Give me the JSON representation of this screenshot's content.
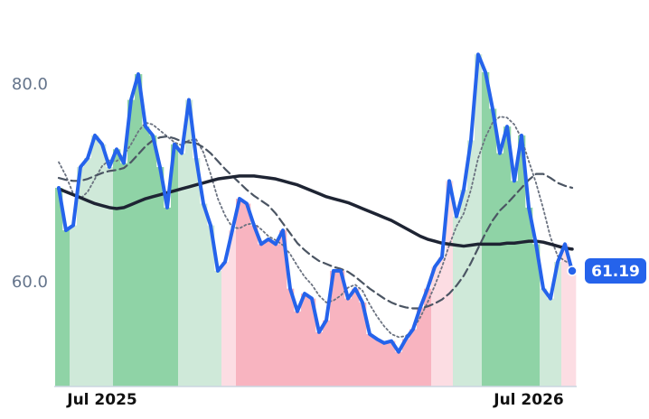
{
  "chart_data": {
    "type": "line",
    "categories": [
      null,
      null,
      null,
      null,
      null,
      null,
      "Jul 2025",
      null,
      null,
      null,
      null,
      null,
      null,
      null,
      null,
      null,
      null,
      null,
      null,
      null,
      null,
      null,
      null,
      null,
      null,
      null,
      null,
      null,
      null,
      null,
      null,
      null,
      null,
      null,
      null,
      null,
      null,
      null,
      null,
      null,
      null,
      null,
      null,
      null,
      null,
      null,
      null,
      null,
      null,
      null,
      null,
      null,
      null,
      null,
      null,
      null,
      null,
      null,
      null,
      null,
      null,
      null,
      null,
      null,
      null,
      "Jul 2026",
      null,
      null,
      null,
      null,
      null,
      null
    ],
    "series": [
      {
        "color": "#2563eb",
        "style": "solid",
        "width": 4,
        "area": true,
        "values": [
          69.6,
          65.3,
          65.8,
          71.7,
          72.6,
          74.9,
          74.0,
          71.7,
          73.5,
          72.1,
          78.5,
          81.1,
          75.8,
          74.9,
          71.7,
          67.6,
          74.0,
          73.1,
          78.5,
          72.6,
          68.0,
          65.8,
          61.2,
          62.1,
          65.3,
          68.5,
          68.0,
          65.8,
          63.9,
          64.4,
          63.9,
          65.3,
          59.4,
          57.1,
          58.9,
          58.4,
          55.0,
          56.2,
          61.2,
          61.2,
          58.4,
          59.4,
          58.0,
          54.8,
          54.3,
          53.9,
          54.1,
          53.0,
          54.3,
          55.3,
          57.5,
          59.4,
          61.6,
          62.6,
          70.3,
          66.7,
          69.4,
          74.4,
          83.1,
          81.3,
          77.6,
          73.1,
          75.8,
          70.3,
          74.9,
          67.6,
          63.9,
          59.4,
          58.4,
          62.1,
          63.9,
          61.19
        ]
      },
      {
        "color": "#1e2433",
        "style": "solid",
        "width": 3.5,
        "values": [
          69.5,
          69.2,
          68.9,
          68.6,
          68.3,
          68.0,
          67.8,
          67.6,
          67.5,
          67.6,
          67.9,
          68.2,
          68.5,
          68.7,
          68.9,
          69.1,
          69.3,
          69.5,
          69.7,
          69.9,
          70.1,
          70.3,
          70.5,
          70.6,
          70.7,
          70.8,
          70.8,
          70.8,
          70.7,
          70.6,
          70.5,
          70.3,
          70.1,
          69.9,
          69.6,
          69.3,
          69.0,
          68.7,
          68.5,
          68.3,
          68.1,
          67.8,
          67.5,
          67.2,
          66.9,
          66.6,
          66.3,
          65.9,
          65.5,
          65.1,
          64.7,
          64.4,
          64.2,
          64.0,
          63.9,
          63.8,
          63.7,
          63.8,
          63.9,
          63.9,
          63.9,
          63.9,
          64.0,
          64.0,
          64.1,
          64.2,
          64.2,
          64.1,
          63.9,
          63.7,
          63.5,
          63.4
        ]
      },
      {
        "color": "#4b5563",
        "style": "dashed",
        "width": 2.2,
        "values": [
          70.6,
          70.4,
          70.3,
          70.3,
          70.5,
          70.8,
          71.1,
          71.3,
          71.4,
          71.6,
          72.2,
          73.0,
          73.8,
          74.4,
          74.7,
          74.8,
          74.6,
          74.3,
          74.2,
          74.1,
          73.7,
          73.1,
          72.3,
          71.5,
          70.8,
          70.1,
          69.4,
          68.8,
          68.3,
          67.8,
          67.0,
          66.0,
          65.0,
          64.0,
          63.3,
          62.7,
          62.2,
          61.9,
          61.6,
          61.4,
          61.1,
          60.6,
          60.0,
          59.4,
          58.9,
          58.4,
          58.0,
          57.7,
          57.5,
          57.4,
          57.4,
          57.6,
          57.9,
          58.3,
          58.9,
          59.7,
          60.7,
          62.0,
          63.5,
          65.0,
          66.3,
          67.3,
          68.0,
          68.8,
          69.6,
          70.4,
          71.0,
          71.0,
          70.6,
          70.1,
          69.8,
          69.6
        ]
      },
      {
        "color": "#6b7280",
        "style": "dotted",
        "width": 1.8,
        "values": [
          72.2,
          70.8,
          69.0,
          68.5,
          69.2,
          70.5,
          71.8,
          72.4,
          72.3,
          72.9,
          74.0,
          75.3,
          76.2,
          76.0,
          75.4,
          74.8,
          74.2,
          73.9,
          74.4,
          74.5,
          73.2,
          71.0,
          68.5,
          66.8,
          65.6,
          65.5,
          65.9,
          66.0,
          65.4,
          64.7,
          64.3,
          63.8,
          62.9,
          61.7,
          60.6,
          59.8,
          58.7,
          58.0,
          58.2,
          58.7,
          59.5,
          59.8,
          59.2,
          57.8,
          56.6,
          55.6,
          54.8,
          54.5,
          54.6,
          55.3,
          56.5,
          58.0,
          59.7,
          61.6,
          63.8,
          65.7,
          67.0,
          69.4,
          72.6,
          74.7,
          76.2,
          76.8,
          76.7,
          76.0,
          74.6,
          72.3,
          70.1,
          67.5,
          64.6,
          62.7,
          62.2,
          61.8
        ]
      }
    ],
    "area_colors": [
      "#8fd3a6",
      "#8fd3a6",
      "#cfe9d9",
      "#cfe9d9",
      "#cfe9d9",
      "#cfe9d9",
      "#cfe9d9",
      "#cfe9d9",
      "#8fd3a6",
      "#8fd3a6",
      "#8fd3a6",
      "#8fd3a6",
      "#8fd3a6",
      "#8fd3a6",
      "#8fd3a6",
      "#8fd3a6",
      "#8fd3a6",
      "#cfe9d9",
      "#cfe9d9",
      "#cfe9d9",
      "#cfe9d9",
      "#cfe9d9",
      "#cfe9d9",
      "#fcdde3",
      "#fcdde3",
      "#f8b4c0",
      "#f8b4c0",
      "#f8b4c0",
      "#f8b4c0",
      "#f8b4c0",
      "#f8b4c0",
      "#f8b4c0",
      "#f8b4c0",
      "#f8b4c0",
      "#f8b4c0",
      "#f8b4c0",
      "#f8b4c0",
      "#f8b4c0",
      "#f8b4c0",
      "#f8b4c0",
      "#f8b4c0",
      "#f8b4c0",
      "#f8b4c0",
      "#f8b4c0",
      "#f8b4c0",
      "#f8b4c0",
      "#f8b4c0",
      "#f8b4c0",
      "#f8b4c0",
      "#f8b4c0",
      "#f8b4c0",
      "#f8b4c0",
      "#fcdde3",
      "#fcdde3",
      "#fcdde3",
      "#cfe9d9",
      "#cfe9d9",
      "#cfe9d9",
      "#cfe9d9",
      "#8fd3a6",
      "#8fd3a6",
      "#8fd3a6",
      "#8fd3a6",
      "#8fd3a6",
      "#8fd3a6",
      "#8fd3a6",
      "#8fd3a6",
      "#cfe9d9",
      "#cfe9d9",
      "#cfe9d9",
      "#fcdde3",
      "#fcdde3"
    ],
    "ylim": [
      49.5,
      88.6
    ],
    "yticks": [
      {
        "value": 60,
        "label": "60.0"
      },
      {
        "value": 80,
        "label": "80.0"
      }
    ],
    "grid": false
  }
}
